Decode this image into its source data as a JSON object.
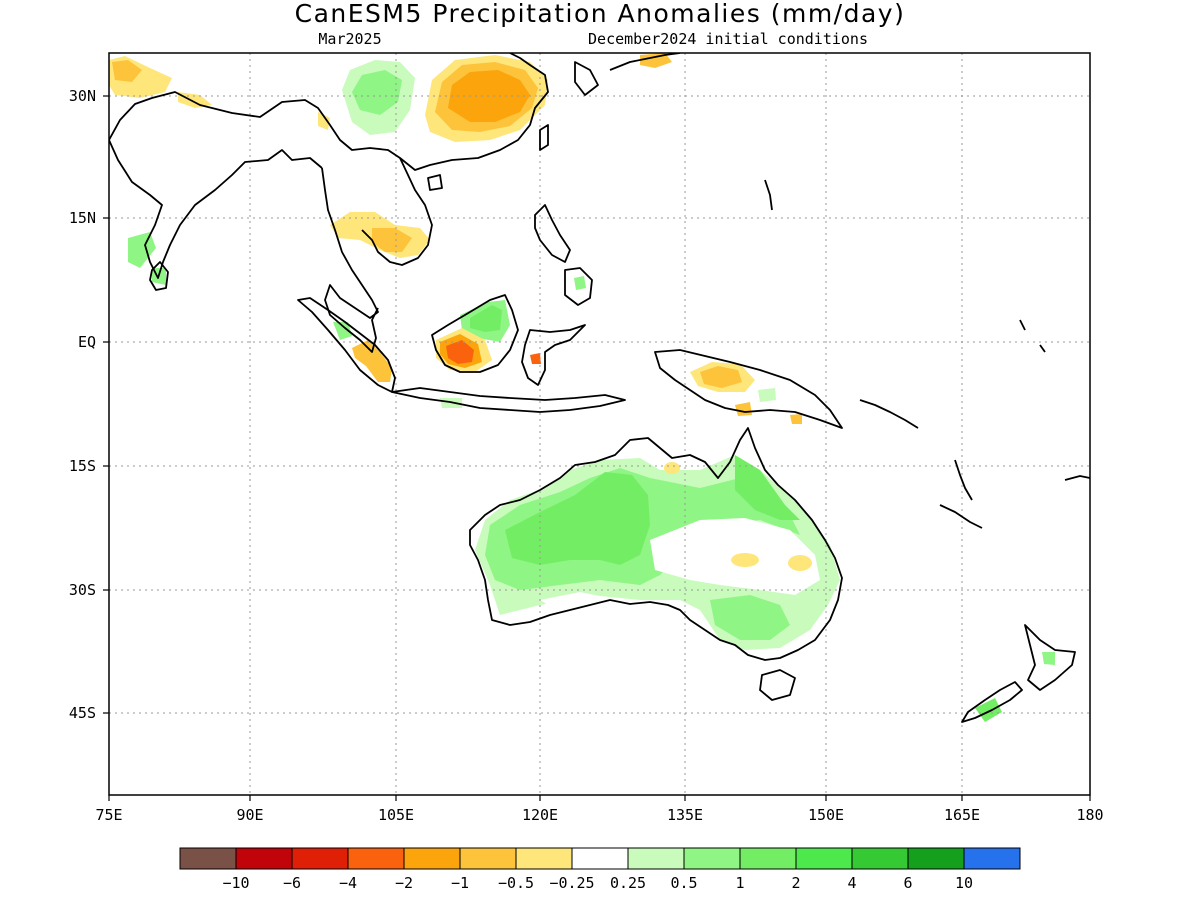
{
  "header": {
    "title": "CanESM5 Precipitation Anomalies (mm/day)",
    "left_label": "Mar2025",
    "right_label": "December2024 initial conditions"
  },
  "axes": {
    "lon_labels": [
      "75E",
      "90E",
      "105E",
      "120E",
      "135E",
      "150E",
      "165E",
      "180"
    ],
    "lat_labels": [
      "30N",
      "15N",
      "EQ",
      "15S",
      "30S",
      "45S"
    ]
  },
  "legend": {
    "colors": [
      "#7a5146",
      "#c0040a",
      "#e01f07",
      "#fa620d",
      "#fca40b",
      "#fdc33b",
      "#fee67b",
      "#ffffff",
      "#c9fbbd",
      "#8ff584",
      "#73ee64",
      "#4de84b",
      "#35ca34",
      "#14a01c",
      "#2672ec"
    ],
    "labels": [
      "−10",
      "−6",
      "−4",
      "−2",
      "−1",
      "−0.5",
      "−0.25",
      "0.25",
      "0.5",
      "1",
      "2",
      "4",
      "6",
      "10"
    ]
  },
  "colors": {
    "anomaly_positive_light": "#c9fbbd",
    "anomaly_positive_mid": "#8ff584",
    "anomaly_positive_strong": "#73ee64",
    "anomaly_negative_light": "#fee67b",
    "anomaly_negative_mid": "#fdc33b",
    "anomaly_negative_strong": "#fca40b",
    "anomaly_negative_very_strong": "#fa620d"
  }
}
